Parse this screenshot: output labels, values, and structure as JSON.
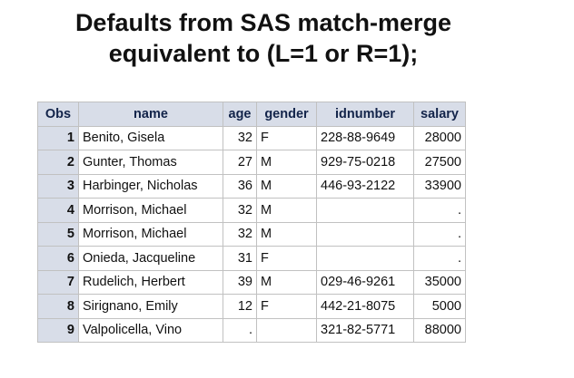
{
  "title": {
    "line1": "Defaults from SAS match-merge",
    "line2": "equivalent to (L=1 or R=1);"
  },
  "table": {
    "columns": [
      "Obs",
      "name",
      "age",
      "gender",
      "idnumber",
      "salary"
    ],
    "rows": [
      {
        "obs": "1",
        "name": "Benito, Gisela",
        "age": "32",
        "gender": "F",
        "idnumber": "228-88-9649",
        "salary": "28000"
      },
      {
        "obs": "2",
        "name": "Gunter, Thomas",
        "age": "27",
        "gender": "M",
        "idnumber": "929-75-0218",
        "salary": "27500"
      },
      {
        "obs": "3",
        "name": "Harbinger, Nicholas",
        "age": "36",
        "gender": "M",
        "idnumber": "446-93-2122",
        "salary": "33900"
      },
      {
        "obs": "4",
        "name": "Morrison, Michael",
        "age": "32",
        "gender": "M",
        "idnumber": "",
        "salary": "."
      },
      {
        "obs": "5",
        "name": "Morrison, Michael",
        "age": "32",
        "gender": "M",
        "idnumber": "",
        "salary": "."
      },
      {
        "obs": "6",
        "name": "Onieda, Jacqueline",
        "age": "31",
        "gender": "F",
        "idnumber": "",
        "salary": "."
      },
      {
        "obs": "7",
        "name": "Rudelich, Herbert",
        "age": "39",
        "gender": "M",
        "idnumber": "029-46-9261",
        "salary": "35000"
      },
      {
        "obs": "8",
        "name": "Sirignano, Emily",
        "age": "12",
        "gender": "F",
        "idnumber": "442-21-8075",
        "salary": "5000"
      },
      {
        "obs": "9",
        "name": "Valpolicella, Vino",
        "age": ".",
        "gender": "",
        "idnumber": "321-82-5771",
        "salary": "88000"
      }
    ]
  }
}
